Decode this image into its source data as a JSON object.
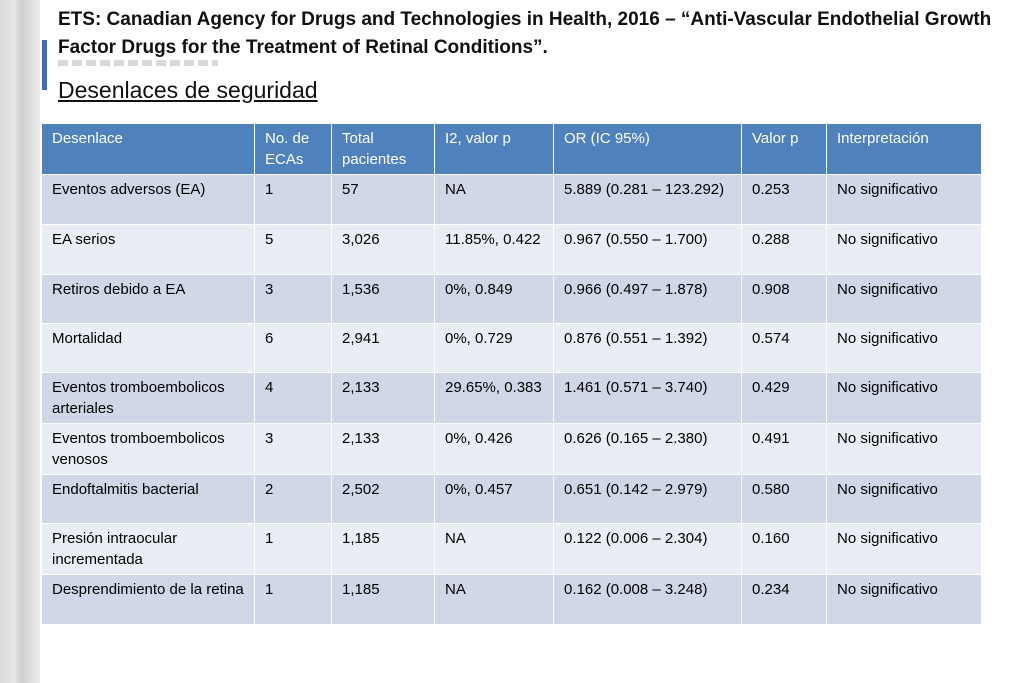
{
  "slide": {
    "title": "ETS: Canadian Agency for Drugs and Technologies in Health, 2016 – “Anti-Vascular Endothelial Growth Factor Drugs for the Treatment of Retinal Conditions”.",
    "subtitle": "Desenlaces de seguridad"
  },
  "table": {
    "headers": [
      "Desenlace",
      "No. de ECAs",
      "Total pacientes",
      "I2, valor p",
      "OR (IC 95%)",
      "Valor p",
      "Interpretación"
    ],
    "rows": [
      [
        "Eventos adversos (EA)",
        "1",
        "57",
        "NA",
        "5.889 (0.281 – 123.292)",
        "0.253",
        "No significativo"
      ],
      [
        "EA serios",
        "5",
        "3,026",
        "11.85%, 0.422",
        "0.967 (0.550 – 1.700)",
        "0.288",
        "No significativo"
      ],
      [
        "Retiros debido a EA",
        "3",
        "1,536",
        "0%, 0.849",
        "0.966 (0.497 – 1.878)",
        "0.908",
        "No significativo"
      ],
      [
        "Mortalidad",
        "6",
        "2,941",
        "0%, 0.729",
        "0.876 (0.551 – 1.392)",
        "0.574",
        "No significativo"
      ],
      [
        "Eventos tromboembolicos arteriales",
        "4",
        "2,133",
        "29.65%, 0.383",
        "1.461 (0.571 – 3.740)",
        "0.429",
        "No significativo"
      ],
      [
        "Eventos tromboembolicos venosos",
        "3",
        "2,133",
        "0%, 0.426",
        "0.626 (0.165 – 2.380)",
        "0.491",
        "No significativo"
      ],
      [
        "Endoftalmitis bacterial",
        "2",
        "2,502",
        "0%, 0.457",
        "0.651 (0.142 – 2.979)",
        "0.580",
        "No significativo"
      ],
      [
        "Presión intraocular incrementada",
        "1",
        "1,185",
        "NA",
        "0.122 (0.006 – 2.304)",
        "0.160",
        "No significativo"
      ],
      [
        "Desprendimiento de la retina",
        "1",
        "1,185",
        "NA",
        "0.162 (0.008 – 3.248)",
        "0.234",
        "No significativo"
      ]
    ]
  },
  "colors": {
    "header_bg": "#4f81bd",
    "row_odd": "#d0d8e8",
    "row_even": "#e9edf4",
    "accent": "#3d6fb6"
  }
}
